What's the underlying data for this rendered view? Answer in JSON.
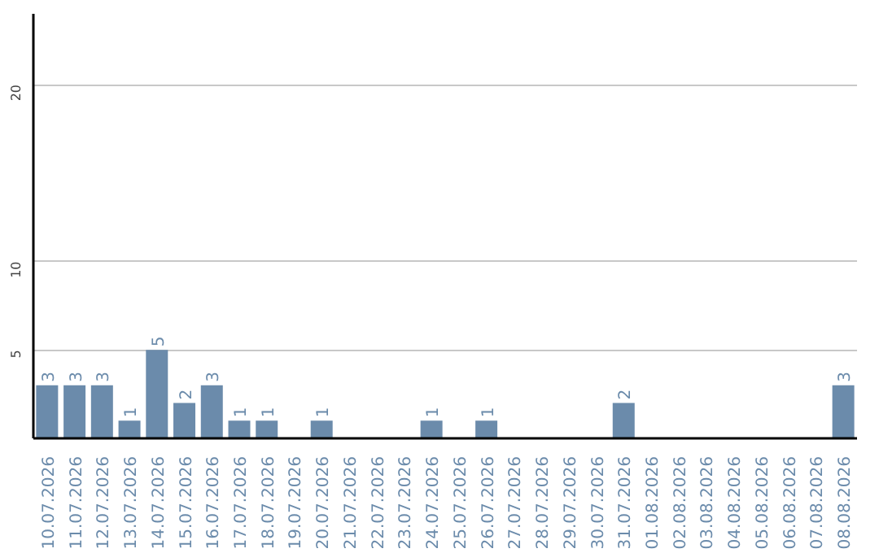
{
  "chart_data": {
    "type": "bar",
    "categories": [
      "10.07.2026",
      "11.07.2026",
      "12.07.2026",
      "13.07.2026",
      "14.07.2026",
      "15.07.2026",
      "16.07.2026",
      "17.07.2026",
      "18.07.2026",
      "19.07.2026",
      "20.07.2026",
      "21.07.2026",
      "22.07.2026",
      "23.07.2026",
      "24.07.2026",
      "25.07.2026",
      "26.07.2026",
      "27.07.2026",
      "28.07.2026",
      "29.07.2026",
      "30.07.2026",
      "31.07.2026",
      "01.08.2026",
      "02.08.2026",
      "03.08.2026",
      "04.08.2026",
      "05.08.2026",
      "06.08.2026",
      "07.08.2026",
      "08.08.2026"
    ],
    "values": [
      3,
      3,
      3,
      1,
      5,
      2,
      3,
      1,
      1,
      0,
      1,
      0,
      0,
      0,
      1,
      0,
      1,
      0,
      0,
      0,
      0,
      2,
      0,
      0,
      0,
      0,
      0,
      0,
      0,
      3
    ],
    "value_labels": [
      "3",
      "3",
      "3",
      "1",
      "5",
      "2",
      "3",
      "1",
      "1",
      null,
      "1",
      null,
      null,
      null,
      "1",
      null,
      "1",
      null,
      null,
      null,
      null,
      "2",
      null,
      null,
      null,
      null,
      null,
      null,
      null,
      "3"
    ],
    "color": "#6b8bab",
    "ylim": [
      0,
      24
    ],
    "yticks": [
      5,
      10,
      20
    ],
    "grid": "y"
  }
}
